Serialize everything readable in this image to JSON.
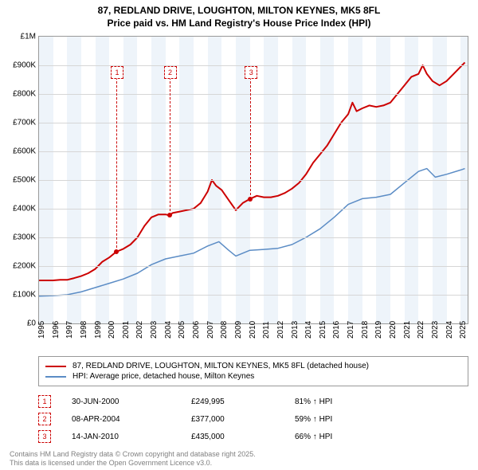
{
  "title_line1": "87, REDLAND DRIVE, LOUGHTON, MILTON KEYNES, MK5 8FL",
  "title_line2": "Price paid vs. HM Land Registry's House Price Index (HPI)",
  "chart": {
    "type": "line",
    "y": {
      "min": 0,
      "max": 1000000,
      "ticks": [
        0,
        100000,
        200000,
        300000,
        400000,
        500000,
        600000,
        700000,
        800000,
        900000,
        1000000
      ],
      "tick_labels": [
        "£0",
        "£100K",
        "£200K",
        "£300K",
        "£400K",
        "£500K",
        "£600K",
        "£700K",
        "£800K",
        "£900K",
        "£1M"
      ]
    },
    "x": {
      "min": 1995,
      "max": 2025.5,
      "ticks": [
        1995,
        1996,
        1997,
        1998,
        1999,
        2000,
        2001,
        2002,
        2003,
        2004,
        2005,
        2006,
        2007,
        2008,
        2009,
        2010,
        2011,
        2012,
        2013,
        2014,
        2015,
        2016,
        2017,
        2018,
        2019,
        2020,
        2021,
        2022,
        2023,
        2024,
        2025
      ],
      "tick_labels": [
        "1995",
        "1996",
        "1997",
        "1998",
        "1999",
        "2000",
        "2001",
        "2002",
        "2003",
        "2004",
        "2005",
        "2006",
        "2007",
        "2008",
        "2009",
        "2010",
        "2011",
        "2012",
        "2013",
        "2014",
        "2015",
        "2016",
        "2017",
        "2018",
        "2019",
        "2020",
        "2021",
        "2022",
        "2023",
        "2024",
        "2025"
      ]
    },
    "bands_every_other_year": true,
    "band_color": "#eef4fa",
    "grid_color": "#d6d6d6",
    "series": {
      "property": {
        "color": "#cc0000",
        "width": 2,
        "points": [
          [
            1995.0,
            150000
          ],
          [
            1995.5,
            150000
          ],
          [
            1996.0,
            150000
          ],
          [
            1996.5,
            152000
          ],
          [
            1997.0,
            152000
          ],
          [
            1997.5,
            158000
          ],
          [
            1998.0,
            165000
          ],
          [
            1998.5,
            175000
          ],
          [
            1999.0,
            190000
          ],
          [
            1999.5,
            215000
          ],
          [
            2000.0,
            230000
          ],
          [
            2000.5,
            250000
          ],
          [
            2001.0,
            260000
          ],
          [
            2001.5,
            275000
          ],
          [
            2002.0,
            300000
          ],
          [
            2002.5,
            340000
          ],
          [
            2003.0,
            370000
          ],
          [
            2003.5,
            380000
          ],
          [
            2004.0,
            380000
          ],
          [
            2004.27,
            377000
          ],
          [
            2004.5,
            385000
          ],
          [
            2005.0,
            390000
          ],
          [
            2005.5,
            395000
          ],
          [
            2006.0,
            400000
          ],
          [
            2006.5,
            420000
          ],
          [
            2007.0,
            460000
          ],
          [
            2007.3,
            500000
          ],
          [
            2007.6,
            480000
          ],
          [
            2008.0,
            465000
          ],
          [
            2008.5,
            430000
          ],
          [
            2009.0,
            395000
          ],
          [
            2009.5,
            420000
          ],
          [
            2010.04,
            435000
          ],
          [
            2010.5,
            445000
          ],
          [
            2011.0,
            440000
          ],
          [
            2011.5,
            440000
          ],
          [
            2012.0,
            445000
          ],
          [
            2012.5,
            455000
          ],
          [
            2013.0,
            470000
          ],
          [
            2013.5,
            490000
          ],
          [
            2014.0,
            520000
          ],
          [
            2014.5,
            560000
          ],
          [
            2015.0,
            590000
          ],
          [
            2015.5,
            620000
          ],
          [
            2016.0,
            660000
          ],
          [
            2016.5,
            700000
          ],
          [
            2017.0,
            730000
          ],
          [
            2017.3,
            770000
          ],
          [
            2017.6,
            740000
          ],
          [
            2018.0,
            750000
          ],
          [
            2018.5,
            760000
          ],
          [
            2019.0,
            755000
          ],
          [
            2019.5,
            760000
          ],
          [
            2020.0,
            770000
          ],
          [
            2020.5,
            800000
          ],
          [
            2021.0,
            830000
          ],
          [
            2021.5,
            860000
          ],
          [
            2022.0,
            870000
          ],
          [
            2022.3,
            900000
          ],
          [
            2022.6,
            870000
          ],
          [
            2023.0,
            845000
          ],
          [
            2023.5,
            830000
          ],
          [
            2024.0,
            845000
          ],
          [
            2024.5,
            870000
          ],
          [
            2025.0,
            895000
          ],
          [
            2025.3,
            910000
          ]
        ]
      },
      "hpi": {
        "color": "#5b8cc5",
        "width": 1.5,
        "points": [
          [
            1995.0,
            95000
          ],
          [
            1996.0,
            97000
          ],
          [
            1997.0,
            100000
          ],
          [
            1998.0,
            110000
          ],
          [
            1999.0,
            125000
          ],
          [
            2000.0,
            140000
          ],
          [
            2001.0,
            155000
          ],
          [
            2002.0,
            175000
          ],
          [
            2003.0,
            205000
          ],
          [
            2004.0,
            225000
          ],
          [
            2005.0,
            235000
          ],
          [
            2006.0,
            245000
          ],
          [
            2007.0,
            270000
          ],
          [
            2007.8,
            285000
          ],
          [
            2008.5,
            255000
          ],
          [
            2009.0,
            235000
          ],
          [
            2010.0,
            255000
          ],
          [
            2011.0,
            258000
          ],
          [
            2012.0,
            262000
          ],
          [
            2013.0,
            275000
          ],
          [
            2014.0,
            300000
          ],
          [
            2015.0,
            330000
          ],
          [
            2016.0,
            370000
          ],
          [
            2017.0,
            415000
          ],
          [
            2018.0,
            435000
          ],
          [
            2019.0,
            440000
          ],
          [
            2020.0,
            450000
          ],
          [
            2021.0,
            490000
          ],
          [
            2022.0,
            530000
          ],
          [
            2022.6,
            540000
          ],
          [
            2023.2,
            510000
          ],
          [
            2024.0,
            520000
          ],
          [
            2025.0,
            535000
          ],
          [
            2025.3,
            540000
          ]
        ]
      }
    },
    "sale_markers": [
      {
        "idx": "1",
        "year": 2000.5,
        "value": 249995
      },
      {
        "idx": "2",
        "year": 2004.27,
        "value": 377000
      },
      {
        "idx": "3",
        "year": 2010.04,
        "value": 435000
      }
    ]
  },
  "legend": {
    "items": [
      {
        "color": "#cc0000",
        "label": "87, REDLAND DRIVE, LOUGHTON, MILTON KEYNES, MK5 8FL (detached house)"
      },
      {
        "color": "#5b8cc5",
        "label": "HPI: Average price, detached house, Milton Keynes"
      }
    ]
  },
  "sales": [
    {
      "idx": "1",
      "date": "30-JUN-2000",
      "price": "£249,995",
      "hpi": "81% ↑ HPI"
    },
    {
      "idx": "2",
      "date": "08-APR-2004",
      "price": "£377,000",
      "hpi": "59% ↑ HPI"
    },
    {
      "idx": "3",
      "date": "14-JAN-2010",
      "price": "£435,000",
      "hpi": "66% ↑ HPI"
    }
  ],
  "footer_line1": "Contains HM Land Registry data © Crown copyright and database right 2025.",
  "footer_line2": "This data is licensed under the Open Government Licence v3.0."
}
